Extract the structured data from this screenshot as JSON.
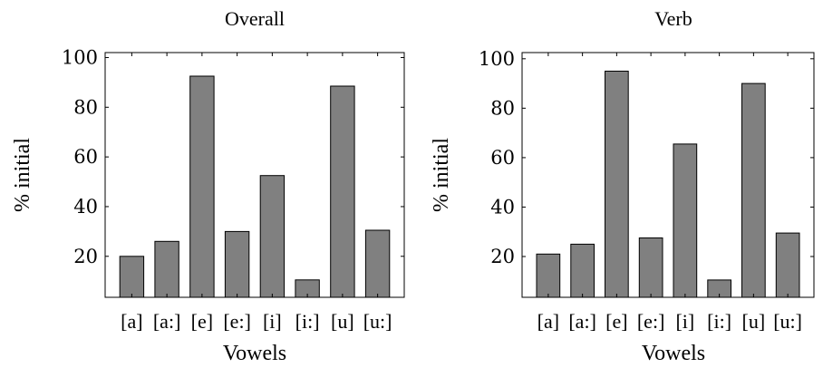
{
  "chart_data": [
    {
      "type": "bar",
      "title": "Overall",
      "xlabel": "Vowels",
      "ylabel": "% initial",
      "categories": [
        "[a]",
        "[a:]",
        "[e]",
        "[e:]",
        "[i]",
        "[i:]",
        "[u]",
        "[u:]"
      ],
      "values": [
        20,
        26,
        92.5,
        30,
        52.5,
        10.5,
        88.5,
        30.5
      ],
      "ylim": [
        3.5,
        102
      ],
      "yticks": [
        20,
        40,
        60,
        80,
        100
      ],
      "grid": false,
      "color": "#808080"
    },
    {
      "type": "bar",
      "title": "Verb",
      "xlabel": "Vowels",
      "ylabel": "% initial",
      "categories": [
        "[a]",
        "[a:]",
        "[e]",
        "[e:]",
        "[i]",
        "[i:]",
        "[u]",
        "[u:]"
      ],
      "values": [
        21,
        25,
        95,
        27.5,
        65.5,
        10.5,
        90,
        29.5
      ],
      "ylim": [
        3.5,
        102.5
      ],
      "yticks": [
        20,
        40,
        60,
        80,
        100
      ],
      "grid": false,
      "color": "#808080"
    }
  ]
}
